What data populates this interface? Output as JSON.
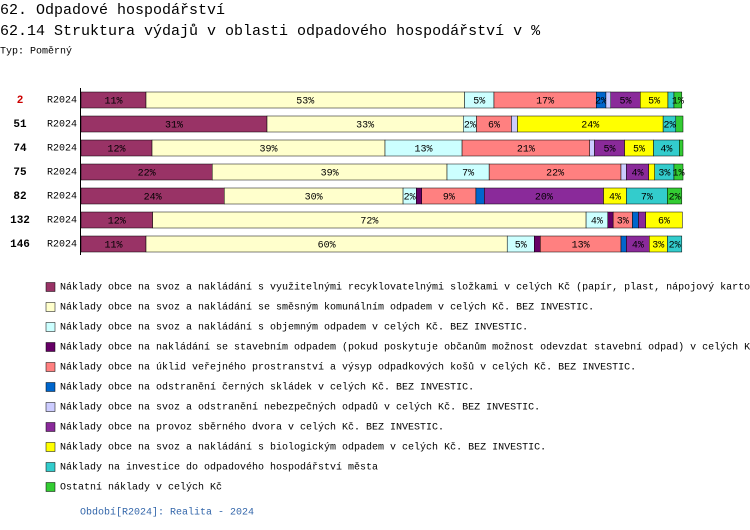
{
  "chart_data": {
    "type": "stacked-barh",
    "title": "62. Odpadové hospodářství",
    "subtitle": "62.14 Struktura výdajů v oblasti odpadového hospodářství v %",
    "mode_label": "Typ: Poměrný",
    "footer": "Období[R2024]: Realita - 2024",
    "categories": [
      "2",
      "51",
      "74",
      "75",
      "82",
      "132",
      "146"
    ],
    "category_colors": [
      "#cc0000",
      "#000000",
      "#000000",
      "#000000",
      "#000000",
      "#000000",
      "#000000"
    ],
    "periods": [
      "R2024",
      "R2024",
      "R2024",
      "R2024",
      "R2024",
      "R2024",
      "R2024"
    ],
    "xlim": [
      0,
      100
    ],
    "series": [
      {
        "name": "Náklady obce na svoz a nakládání s využitelnými recyklovatelnými složkami v celých Kč (papír, plast, nápojový karto",
        "color": "#993366",
        "values": [
          10.8,
          30.9,
          11.8,
          21.8,
          23.8,
          11.9,
          10.8
        ],
        "value_labels": [
          "11%",
          "31%",
          "12%",
          "22%",
          "24%",
          "12%",
          "11%"
        ]
      },
      {
        "name": "Náklady obce na svoz a nakládání se směsným komunálním odpadem v celých Kč.  BEZ INVESTIC.",
        "color": "#ffffcc",
        "values": [
          52.9,
          32.6,
          38.7,
          39.0,
          29.7,
          72.0,
          60.0
        ],
        "value_labels": [
          "53%",
          "33%",
          "39%",
          "39%",
          "30%",
          "72%",
          "60%"
        ]
      },
      {
        "name": "Náklady obce na svoz a nakládání s objemným odpadem v celých Kč.  BEZ INVESTIC.",
        "color": "#ccffff",
        "values": [
          4.9,
          2.2,
          12.8,
          7.0,
          2.2,
          3.6,
          4.5
        ],
        "value_labels": [
          "5%",
          "2%",
          "13%",
          "7%",
          "2%",
          "4%",
          "5%"
        ]
      },
      {
        "name": "Náklady obce na nakládání se stavebním odpadem (pokud poskytuje občanům možnost odevzdat stavební odpad) v celých K",
        "color": "#660066",
        "values": [
          0,
          0,
          0,
          0,
          0.9,
          0.9,
          1.0
        ],
        "value_labels": [
          null,
          null,
          null,
          null,
          null,
          null,
          null
        ]
      },
      {
        "name": "Náklady obce na úklid veřejného prostranství a výsyp odpadkových košů v celých Kč.  BEZ INVESTIC.",
        "color": "#ff8080",
        "values": [
          17.0,
          5.8,
          21.2,
          21.9,
          9.0,
          3.2,
          13.4
        ],
        "value_labels": [
          "17%",
          "6%",
          "21%",
          "22%",
          "9%",
          "3%",
          "13%"
        ]
      },
      {
        "name": "Náklady obce na odstranění černých skládek v celých Kč.  BEZ INVESTIC.",
        "color": "#0066cc",
        "values": [
          1.6,
          0,
          0,
          0,
          1.4,
          1.0,
          0.9
        ],
        "value_labels": [
          "2%",
          null,
          null,
          null,
          null,
          null,
          null
        ]
      },
      {
        "name": "Náklady obce na svoz a odstranění nebezpečných odpadů v celých Kč.  BEZ INVESTIC.",
        "color": "#ccccff",
        "values": [
          0.8,
          1.0,
          0.8,
          0.9,
          0,
          0,
          0
        ],
        "value_labels": [
          null,
          null,
          null,
          null,
          null,
          null,
          null
        ]
      },
      {
        "name": "Náklady obce na provoz sběrného dvora v celých Kč.  BEZ INVESTIC.",
        "color": "#8a2a9a",
        "values": [
          4.9,
          0,
          5.0,
          3.7,
          19.8,
          1.2,
          3.8
        ],
        "value_labels": [
          "5%",
          null,
          "5%",
          "4%",
          "20%",
          null,
          "4%"
        ]
      },
      {
        "name": "Náklady obce na svoz a nakládání s biologickým odpadem v celých Kč.  BEZ INVESTIC.",
        "color": "#ffff00",
        "values": [
          4.6,
          24.2,
          4.8,
          1.0,
          3.8,
          6.1,
          3.0
        ],
        "value_labels": [
          "5%",
          "24%",
          "5%",
          null,
          "4%",
          "6%",
          "3%"
        ]
      },
      {
        "name": "Náklady na investice do odpadového hospodářství města",
        "color": "#33cccc",
        "values": [
          1.0,
          2.1,
          4.3,
          3.2,
          6.8,
          0,
          2.4
        ],
        "value_labels": [
          null,
          "2%",
          "4%",
          "3%",
          "7%",
          null,
          "2%"
        ]
      },
      {
        "name": "Ostatní náklady v celých Kč",
        "color": "#33cc33",
        "values": [
          1.3,
          1.2,
          0.6,
          1.5,
          2.4,
          0,
          0
        ],
        "value_labels": [
          "1%",
          null,
          null,
          "1%",
          "2%",
          null,
          null
        ]
      }
    ]
  }
}
